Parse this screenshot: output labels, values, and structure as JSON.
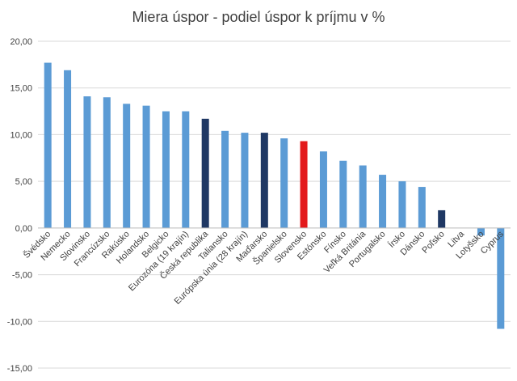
{
  "chart_data": {
    "type": "bar",
    "title": "Miera úspor - podiel úspor k príjmu v %",
    "xlabel": "",
    "ylabel": "",
    "ylim": [
      -15,
      20
    ],
    "ytick_step": 5,
    "ytick_labels": [
      "20,00",
      "15,00",
      "10,00",
      "5,00",
      "0,00",
      "-5,00",
      "-10,00",
      "-15,00"
    ],
    "grid": true,
    "legend": "none",
    "colors": {
      "default": "#5b9bd5",
      "highlight_dark": "#1f3864",
      "highlight_red": "#e31a1c",
      "grid": "#d9d9d9",
      "axis": "#bfbfbf"
    },
    "categories": [
      "Švédsko",
      "Nemecko",
      "Slovinsko",
      "Francúzsko",
      "Rakúsko",
      "Holandsko",
      "Belgicko",
      "Eurozóna (19 krajín)",
      "Česká republika",
      "Taliansko",
      "Európska únia (28 krajín)",
      "Maďarsko",
      "Španielsko",
      "Slovensko",
      "Estónsko",
      "Fínsko",
      "Veľká Británia",
      "Portugalsko",
      "Írsko",
      "Dánsko",
      "Poľsko",
      "Litva",
      "Lotyšsko",
      "Cyprus"
    ],
    "values": [
      17.7,
      16.9,
      14.1,
      14.0,
      13.3,
      13.1,
      12.5,
      12.5,
      11.7,
      10.4,
      10.2,
      10.2,
      9.6,
      9.3,
      8.2,
      7.2,
      6.7,
      5.7,
      5.0,
      4.4,
      1.9,
      0.0,
      -0.8,
      -10.8
    ],
    "bar_colors": [
      "default",
      "default",
      "default",
      "default",
      "default",
      "default",
      "default",
      "default",
      "highlight_dark",
      "default",
      "default",
      "highlight_dark",
      "default",
      "highlight_red",
      "default",
      "default",
      "default",
      "default",
      "default",
      "default",
      "highlight_dark",
      "default",
      "default",
      "default"
    ]
  }
}
